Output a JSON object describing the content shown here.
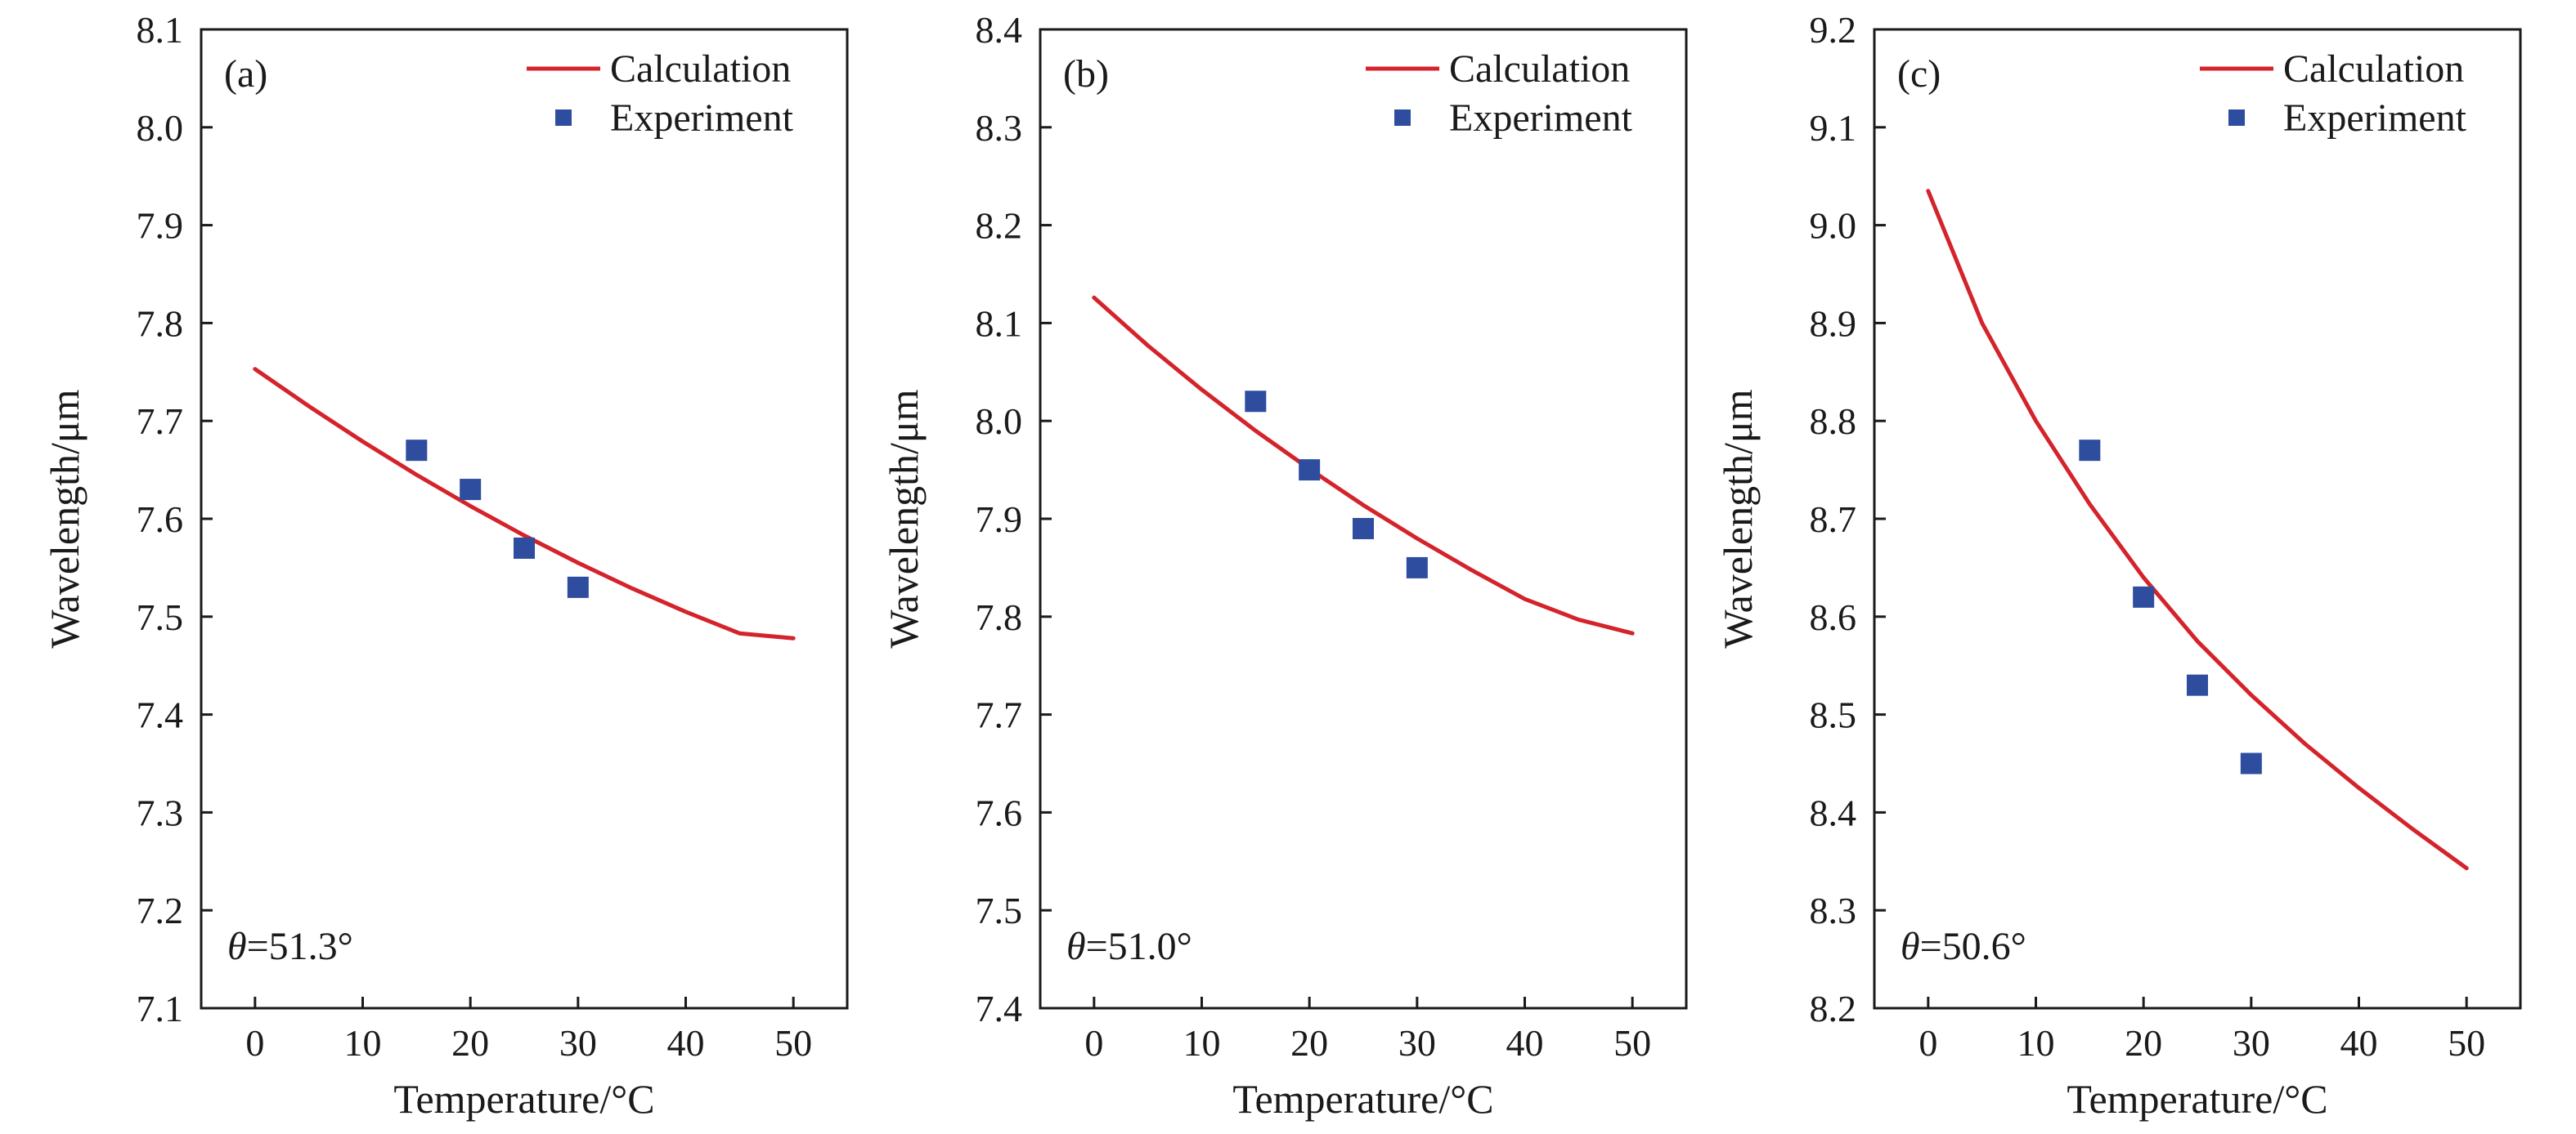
{
  "figure": {
    "colors": {
      "calculation": "#d4232b",
      "experiment": "#2e4d9e",
      "axis": "#1a1a1a"
    }
  },
  "chart_data": [
    {
      "type": "line",
      "panel_label": "(a)",
      "annotation_symbol": "θ",
      "annotation_value": "=51.3°",
      "xlabel": "Temperature/°C",
      "ylabel": "Wavelength/μm",
      "xlim": [
        -5,
        55
      ],
      "ylim": [
        7.1,
        8.1
      ],
      "x_ticks": [
        0,
        10,
        20,
        30,
        40,
        50
      ],
      "y_ticks": [
        7.1,
        7.2,
        7.3,
        7.4,
        7.5,
        7.6,
        7.7,
        7.8,
        7.9,
        8.0,
        8.1
      ],
      "series": [
        {
          "name": "Calculation",
          "kind": "line",
          "x": [
            0,
            5,
            10,
            15,
            20,
            25,
            30,
            35,
            40,
            45,
            50
          ],
          "y": [
            7.753,
            7.715,
            7.679,
            7.645,
            7.613,
            7.583,
            7.555,
            7.529,
            7.505,
            7.483,
            7.478
          ]
        },
        {
          "name": "Experiment",
          "kind": "scatter",
          "x": [
            15,
            20,
            25,
            30
          ],
          "y": [
            7.67,
            7.63,
            7.57,
            7.53
          ]
        }
      ]
    },
    {
      "type": "line",
      "panel_label": "(b)",
      "annotation_symbol": "θ",
      "annotation_value": "=51.0°",
      "xlabel": "Temperature/°C",
      "ylabel": "Wavelength/μm",
      "xlim": [
        -5,
        55
      ],
      "ylim": [
        7.4,
        8.4
      ],
      "x_ticks": [
        0,
        10,
        20,
        30,
        40,
        50
      ],
      "y_ticks": [
        7.4,
        7.5,
        7.6,
        7.7,
        7.8,
        7.9,
        8.0,
        8.1,
        8.2,
        8.3,
        8.4
      ],
      "series": [
        {
          "name": "Calculation",
          "kind": "line",
          "x": [
            0,
            5,
            10,
            15,
            20,
            25,
            30,
            35,
            40,
            45,
            50
          ],
          "y": [
            8.126,
            8.077,
            8.032,
            7.99,
            7.951,
            7.914,
            7.88,
            7.848,
            7.818,
            7.797,
            7.783
          ]
        },
        {
          "name": "Experiment",
          "kind": "scatter",
          "x": [
            15,
            20,
            25,
            30
          ],
          "y": [
            8.02,
            7.95,
            7.89,
            7.85
          ]
        }
      ]
    },
    {
      "type": "line",
      "panel_label": "(c)",
      "annotation_symbol": "θ",
      "annotation_value": "=50.6°",
      "xlabel": "Temperature/°C",
      "ylabel": "Wavelength/μm",
      "xlim": [
        -5,
        55
      ],
      "ylim": [
        8.2,
        9.2
      ],
      "x_ticks": [
        0,
        10,
        20,
        30,
        40,
        50
      ],
      "y_ticks": [
        8.2,
        8.3,
        8.4,
        8.5,
        8.6,
        8.7,
        8.8,
        8.9,
        9.0,
        9.1,
        9.2
      ],
      "series": [
        {
          "name": "Calculation",
          "kind": "line",
          "x": [
            0,
            5,
            10,
            15,
            20,
            25,
            30,
            35,
            40,
            45,
            50
          ],
          "y": [
            9.035,
            8.9,
            8.8,
            8.715,
            8.64,
            8.575,
            8.52,
            8.47,
            8.425,
            8.383,
            8.343
          ]
        },
        {
          "name": "Experiment",
          "kind": "scatter",
          "x": [
            15,
            20,
            25,
            30
          ],
          "y": [
            8.77,
            8.62,
            8.53,
            8.45
          ]
        }
      ]
    }
  ]
}
